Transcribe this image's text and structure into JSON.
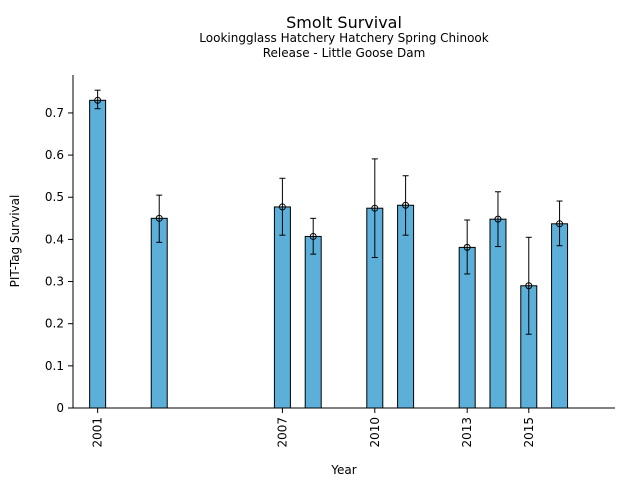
{
  "chart_data": {
    "type": "bar",
    "title": "Smolt Survival",
    "subtitle_lines": [
      "Lookingglass Hatchery Hatchery Spring Chinook",
      "Release - Little Goose Dam"
    ],
    "xlabel": "Year",
    "ylabel": "PIT-Tag Survival",
    "x": [
      2001,
      2003,
      2007,
      2008,
      2010,
      2011,
      2013,
      2014,
      2015,
      2016
    ],
    "values": [
      0.73,
      0.45,
      0.477,
      0.407,
      0.474,
      0.481,
      0.381,
      0.448,
      0.29,
      0.437
    ],
    "err_low": [
      0.71,
      0.393,
      0.41,
      0.365,
      0.357,
      0.41,
      0.318,
      0.383,
      0.175,
      0.385
    ],
    "err_high": [
      0.754,
      0.505,
      0.545,
      0.45,
      0.591,
      0.551,
      0.446,
      0.513,
      0.405,
      0.491
    ],
    "xticks": [
      2001,
      2007,
      2010,
      2013,
      2015
    ],
    "yticks": [
      0,
      0.1,
      0.2,
      0.3,
      0.4,
      0.5,
      0.6,
      0.7
    ],
    "ylim": [
      0,
      0.79
    ],
    "xlim": [
      2000.2,
      2017.8
    ],
    "bar_color": "#5bafd8",
    "grid": false
  }
}
